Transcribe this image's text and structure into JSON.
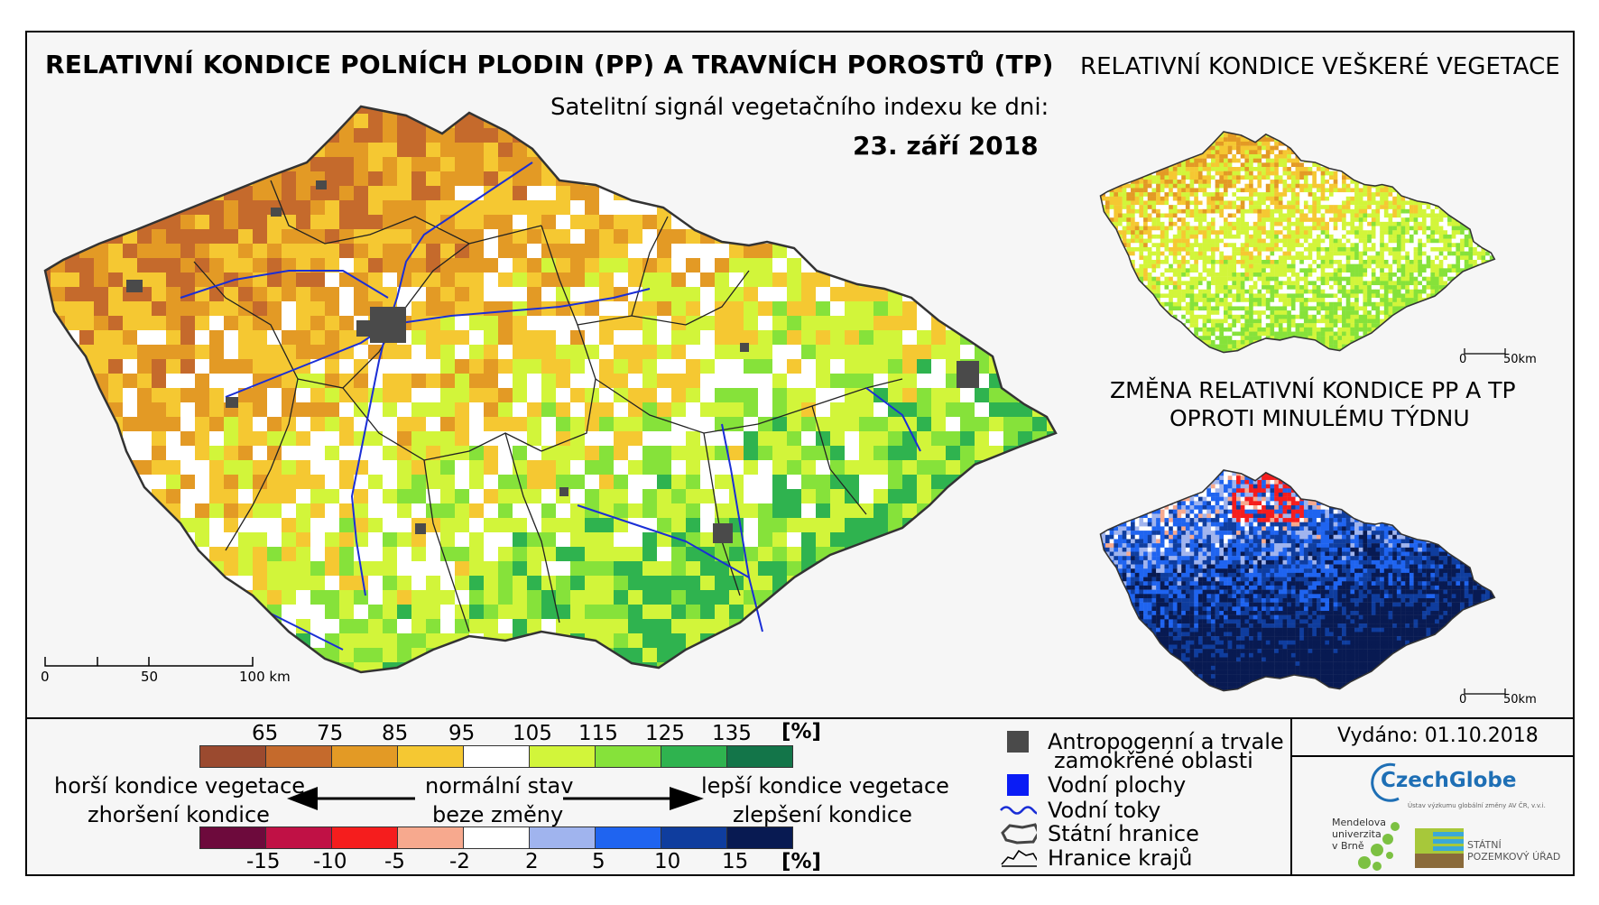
{
  "title": "RELATIVNÍ KONDICE POLNÍCH PLODIN (PP) A TRAVNÍCH POROSTŮ (TP)",
  "subtitle": "Satelitní signál vegetačního indexu ke dni:",
  "date": "23. září 2018",
  "inset_vegetation_title": "RELATIVNÍ KONDICE VEŠKERÉ VEGETACE",
  "inset_change_title_line1": "ZMĚNA RELATIVNÍ KONDICE PP A TP",
  "inset_change_title_line2": "OPROTI MINULÉMU TÝDNU",
  "main_scale": {
    "ticks": [
      "0",
      "50",
      "100 km"
    ]
  },
  "inset_scale": {
    "ticks": [
      "0",
      "50km"
    ]
  },
  "condition_legend": {
    "values": [
      "65",
      "75",
      "85",
      "95",
      "105",
      "115",
      "125",
      "135"
    ],
    "unit": "[%]",
    "colors": [
      "#9b4a2f",
      "#c56a2c",
      "#e39a25",
      "#f5c832",
      "#ffffff",
      "#d2f53a",
      "#86e23a",
      "#2fb34f",
      "#137549"
    ]
  },
  "change_legend": {
    "values": [
      "-15",
      "-10",
      "-5",
      "-2",
      "2",
      "5",
      "10",
      "15"
    ],
    "unit": "[%]",
    "colors": [
      "#6d0a3c",
      "#c01145",
      "#f51d1d",
      "#f7a98e",
      "#ffffff",
      "#a0b4ee",
      "#1f64f0",
      "#0f3d9e",
      "#081a52"
    ]
  },
  "labels": {
    "worse_condition": "horší kondice vegetace",
    "worsening": "zhoršení kondice",
    "normal_state": "normální stav",
    "no_change": "beze změny",
    "better_condition": "lepší kondice vegetace",
    "improvement": "zlepšení kondice"
  },
  "map_legend": [
    {
      "icon": "urban-area-icon",
      "line1": "Antropogenní a trvale",
      "line2": "zamokřené oblasti"
    },
    {
      "icon": "water-body-icon",
      "line1": "Vodní plochy"
    },
    {
      "icon": "river-icon",
      "line1": "Vodní toky"
    },
    {
      "icon": "state-border-icon",
      "line1": "Státní hranice"
    },
    {
      "icon": "region-border-icon",
      "line1": "Hranice krajů"
    }
  ],
  "issued": "Vydáno: 01.10.2018",
  "logos": {
    "czechglobe": "CzechGlobe",
    "czechglobe_sub": "Ústav výzkumu globální změny AV ČR, v.v.i.",
    "mendel": [
      "Mendelova",
      "univerzita",
      "v Brně"
    ],
    "spu": [
      "STÁTNÍ",
      "POZEMKOVÝ ÚŘAD"
    ]
  },
  "colors": {
    "urban": "#4a4a4a",
    "water": "#0a1cf5",
    "river": "#1a2ed6",
    "border": "#222222"
  }
}
